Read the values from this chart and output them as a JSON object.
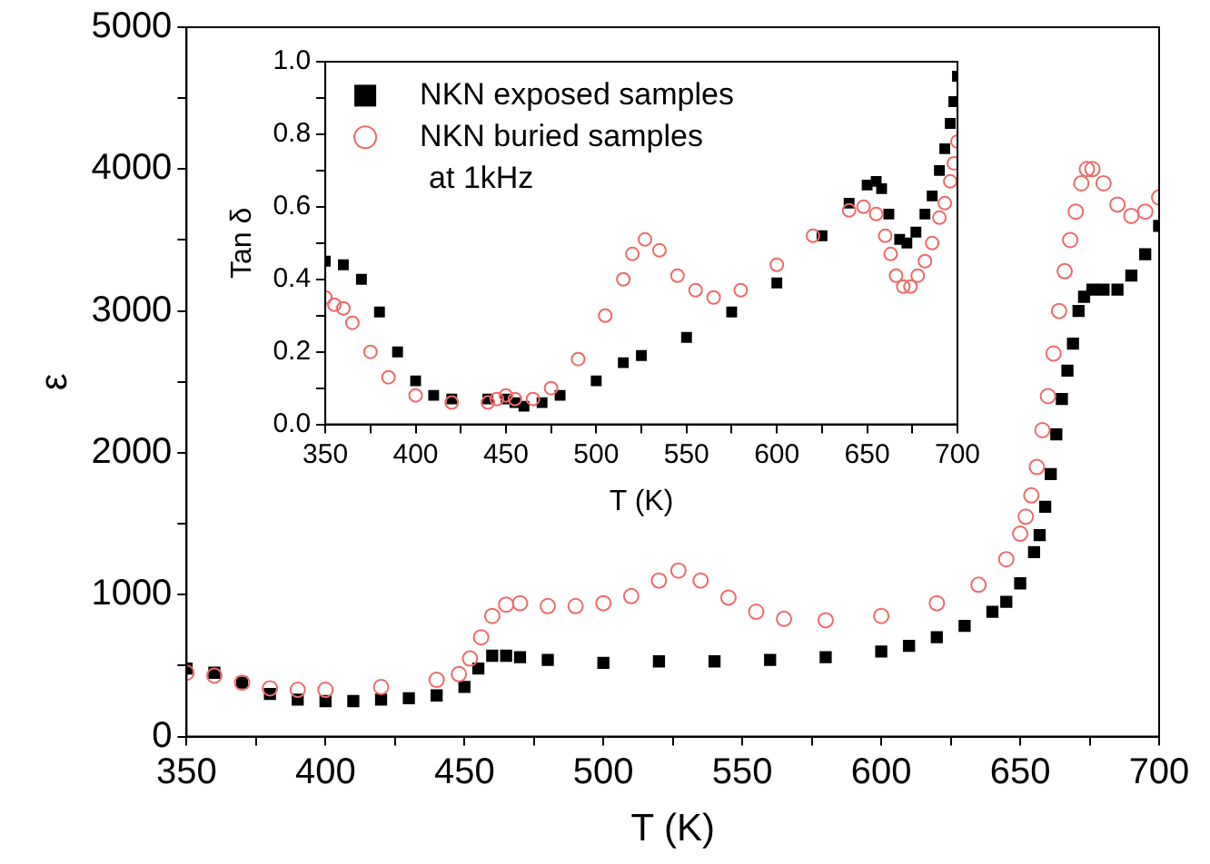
{
  "chart_data": [
    {
      "type": "scatter",
      "xlabel": "T (K)",
      "ylabel": "ε",
      "xlim": [
        350,
        700
      ],
      "ylim": [
        0,
        5000
      ],
      "xticks": [
        350,
        {
          "value": 375,
          "label": null
        },
        400,
        {
          "value": 425,
          "label": null
        },
        450,
        {
          "value": 475,
          "label": null
        },
        500,
        {
          "value": 525,
          "label": null
        },
        550,
        {
          "value": 575,
          "label": null
        },
        600,
        {
          "value": 625,
          "label": null
        },
        650,
        {
          "value": 675,
          "label": null
        },
        700
      ],
      "yticks": [
        0,
        {
          "value": 500,
          "label": null
        },
        1000,
        {
          "value": 1500,
          "label": null
        },
        2000,
        {
          "value": 2500,
          "label": null
        },
        3000,
        {
          "value": 3500,
          "label": null
        },
        4000,
        {
          "value": 4500,
          "label": null
        },
        5000
      ],
      "grid": false,
      "legend": false,
      "series": [
        {
          "color": "#000000",
          "marker": "square",
          "x": [
            350,
            360,
            370,
            380,
            390,
            400,
            410,
            420,
            430,
            440,
            450,
            455,
            460,
            465,
            470,
            480,
            500,
            520,
            540,
            560,
            580,
            600,
            610,
            620,
            630,
            640,
            645,
            650,
            655,
            657,
            659,
            661,
            663,
            665,
            667,
            669,
            671,
            673,
            676,
            680,
            685,
            690,
            695,
            700
          ],
          "values": [
            480,
            450,
            380,
            300,
            260,
            250,
            250,
            260,
            270,
            290,
            350,
            480,
            570,
            570,
            560,
            540,
            520,
            530,
            530,
            540,
            560,
            600,
            640,
            700,
            780,
            880,
            950,
            1080,
            1300,
            1420,
            1620,
            1850,
            2130,
            2380,
            2580,
            2770,
            3000,
            3100,
            3150,
            3150,
            3150,
            3250,
            3400,
            3600
          ]
        },
        {
          "color": "#f06a6a",
          "marker": "circle",
          "x": [
            350,
            360,
            370,
            380,
            390,
            400,
            420,
            440,
            448,
            452,
            456,
            460,
            465,
            470,
            480,
            490,
            500,
            510,
            520,
            527,
            535,
            545,
            555,
            565,
            580,
            600,
            620,
            635,
            645,
            650,
            652,
            654,
            656,
            658,
            660,
            662,
            664,
            666,
            668,
            670,
            672,
            674,
            676,
            680,
            685,
            690,
            695,
            700
          ],
          "values": [
            450,
            430,
            380,
            340,
            330,
            330,
            350,
            400,
            440,
            550,
            700,
            850,
            930,
            940,
            920,
            920,
            940,
            990,
            1100,
            1170,
            1100,
            980,
            880,
            830,
            820,
            850,
            940,
            1070,
            1250,
            1430,
            1550,
            1700,
            1900,
            2160,
            2400,
            2700,
            3000,
            3280,
            3500,
            3700,
            3900,
            4000,
            4000,
            3900,
            3750,
            3670,
            3700,
            3800
          ]
        }
      ]
    },
    {
      "type": "scatter",
      "xlabel": "T (K)",
      "ylabel": "Tan δ",
      "xlim": [
        350,
        700
      ],
      "ylim": [
        0,
        1.0
      ],
      "xticks": [
        350,
        {
          "value": 375,
          "label": null
        },
        400,
        {
          "value": 425,
          "label": null
        },
        450,
        {
          "value": 475,
          "label": null
        },
        500,
        {
          "value": 525,
          "label": null
        },
        550,
        {
          "value": 575,
          "label": null
        },
        600,
        {
          "value": 625,
          "label": null
        },
        650,
        {
          "value": 675,
          "label": null
        },
        700
      ],
      "yticks": [
        {
          "value": 0,
          "label": "0.0"
        },
        {
          "value": 0.1,
          "label": null
        },
        0.2,
        {
          "value": 0.3,
          "label": null
        },
        0.4,
        {
          "value": 0.5,
          "label": null
        },
        0.6,
        {
          "value": 0.7,
          "label": null
        },
        0.8,
        {
          "value": 0.9,
          "label": null
        },
        {
          "value": 1,
          "label": "1.0"
        }
      ],
      "grid": false,
      "legend": "top left",
      "annotations": [
        "at 1kHz"
      ],
      "series": [
        {
          "name": "NKN exposed samples",
          "color": "#000000",
          "marker": "square",
          "x": [
            350,
            360,
            370,
            380,
            390,
            400,
            410,
            420,
            440,
            450,
            455,
            460,
            470,
            480,
            500,
            515,
            525,
            550,
            575,
            600,
            625,
            640,
            650,
            655,
            658,
            662,
            668,
            672,
            677,
            682,
            686,
            690,
            693,
            696,
            698,
            700
          ],
          "values": [
            0.45,
            0.44,
            0.4,
            0.31,
            0.2,
            0.12,
            0.08,
            0.07,
            0.07,
            0.07,
            0.06,
            0.05,
            0.06,
            0.08,
            0.12,
            0.17,
            0.19,
            0.24,
            0.31,
            0.39,
            0.52,
            0.61,
            0.66,
            0.67,
            0.65,
            0.58,
            0.51,
            0.5,
            0.53,
            0.58,
            0.63,
            0.7,
            0.76,
            0.83,
            0.89,
            0.96
          ]
        },
        {
          "name": "NKN buried samples",
          "color": "#f06a6a",
          "marker": "circle",
          "x": [
            350,
            355,
            360,
            365,
            375,
            385,
            400,
            420,
            440,
            445,
            450,
            455,
            465,
            475,
            490,
            505,
            515,
            520,
            527,
            535,
            545,
            555,
            565,
            580,
            600,
            620,
            640,
            648,
            655,
            660,
            663,
            666,
            670,
            674,
            678,
            682,
            686,
            690,
            693,
            696,
            698,
            700
          ],
          "values": [
            0.35,
            0.33,
            0.32,
            0.28,
            0.2,
            0.13,
            0.08,
            0.06,
            0.06,
            0.07,
            0.08,
            0.07,
            0.07,
            0.1,
            0.18,
            0.3,
            0.4,
            0.47,
            0.51,
            0.48,
            0.41,
            0.37,
            0.35,
            0.37,
            0.44,
            0.52,
            0.59,
            0.6,
            0.58,
            0.52,
            0.47,
            0.41,
            0.38,
            0.38,
            0.41,
            0.45,
            0.5,
            0.57,
            0.61,
            0.67,
            0.72,
            0.78
          ]
        }
      ]
    }
  ]
}
